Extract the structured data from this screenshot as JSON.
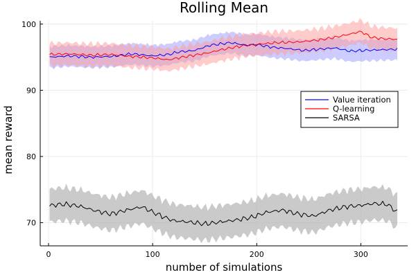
{
  "chart_data": {
    "type": "line",
    "title": "Rolling Mean",
    "xlabel": "number of simulations",
    "ylabel": "mean reward",
    "xlim": [
      -8,
      345
    ],
    "ylim": [
      66.5,
      100.5
    ],
    "xticks": [
      0,
      100,
      200,
      300
    ],
    "yticks": [
      70,
      80,
      90,
      100
    ],
    "grid": true,
    "legend_position": "right",
    "series": [
      {
        "name": "Value iteration",
        "color": "#0000ff",
        "band_color": "#9999ff",
        "band_halfwidth": 1.6,
        "x": [
          1,
          20,
          40,
          60,
          80,
          100,
          115,
          125,
          140,
          155,
          165,
          175,
          190,
          200,
          215,
          230,
          245,
          260,
          275,
          290,
          300,
          315,
          335
        ],
        "y": [
          95.0,
          95.2,
          95.0,
          95.1,
          95.5,
          95.2,
          95.4,
          95.8,
          96.0,
          96.8,
          97.0,
          97.2,
          96.8,
          96.9,
          96.5,
          96.3,
          96.0,
          96.2,
          96.4,
          95.9,
          96.0,
          96.1,
          96.2
        ]
      },
      {
        "name": "Q-learning",
        "color": "#ff0000",
        "band_color": "#ff9999",
        "band_halfwidth": 1.7,
        "x": [
          1,
          20,
          40,
          60,
          80,
          100,
          115,
          125,
          140,
          155,
          165,
          175,
          190,
          205,
          220,
          240,
          260,
          275,
          290,
          300,
          310,
          320,
          335
        ],
        "y": [
          95.4,
          95.5,
          95.3,
          95.4,
          95.1,
          94.9,
          94.6,
          94.9,
          95.3,
          95.7,
          96.1,
          96.4,
          96.8,
          97.0,
          97.2,
          97.3,
          97.6,
          98.0,
          98.5,
          98.9,
          98.0,
          97.8,
          97.7
        ]
      },
      {
        "name": "SARSA",
        "color": "#000000",
        "band_color": "#b4b4b4",
        "band_halfwidth": 2.5,
        "x": [
          1,
          15,
          30,
          45,
          60,
          75,
          90,
          100,
          110,
          120,
          135,
          150,
          165,
          180,
          195,
          210,
          225,
          240,
          255,
          270,
          285,
          300,
          312,
          325,
          335
        ],
        "y": [
          72.6,
          72.8,
          72.5,
          71.8,
          71.3,
          71.9,
          72.4,
          71.6,
          70.9,
          70.3,
          70.1,
          69.8,
          70.1,
          70.4,
          70.8,
          71.6,
          71.9,
          71.3,
          71.0,
          71.9,
          72.4,
          72.6,
          72.9,
          72.8,
          71.6
        ]
      }
    ]
  }
}
